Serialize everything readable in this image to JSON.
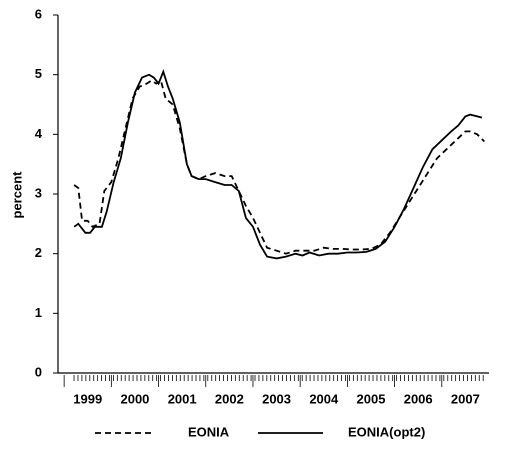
{
  "chart_data": {
    "type": "line",
    "y_label": "percent",
    "xlim": [
      1998.87,
      2008.0
    ],
    "xticks": [
      1999,
      2000,
      2001,
      2002,
      2003,
      2004,
      2005,
      2006,
      2007
    ],
    "ylim": [
      0,
      6
    ],
    "yticks": [
      0,
      1,
      2,
      3,
      4,
      5,
      6
    ],
    "series": [
      {
        "name": "EONIA",
        "color": "#000000",
        "line_style": "dashed",
        "x": [
          1999.21,
          1999.3,
          1999.38,
          1999.5,
          1999.6,
          1999.75,
          1999.85,
          2000.0,
          2000.15,
          2000.3,
          2000.45,
          2000.6,
          2000.75,
          2000.85,
          2000.95,
          2001.05,
          2001.15,
          2001.3,
          2001.45,
          2001.6,
          2001.7,
          2001.85,
          2002.0,
          2002.2,
          2002.4,
          2002.55,
          2002.7,
          2002.85,
          2003.0,
          2003.15,
          2003.3,
          2003.5,
          2003.7,
          2003.9,
          2004.1,
          2004.3,
          2004.5,
          2004.7,
          2004.9,
          2005.1,
          2005.3,
          2005.5,
          2005.7,
          2005.9,
          2006.1,
          2006.3,
          2006.5,
          2006.7,
          2006.9,
          2007.1,
          2007.3,
          2007.5,
          2007.6,
          2007.75,
          2007.9
        ],
        "values": [
          3.15,
          3.1,
          2.55,
          2.55,
          2.45,
          2.5,
          3.05,
          3.2,
          3.6,
          4.1,
          4.6,
          4.8,
          4.85,
          4.9,
          4.85,
          4.9,
          4.6,
          4.5,
          4.1,
          3.5,
          3.3,
          3.25,
          3.3,
          3.35,
          3.3,
          3.3,
          3.05,
          2.8,
          2.6,
          2.35,
          2.1,
          2.05,
          2.0,
          2.05,
          2.05,
          2.05,
          2.1,
          2.08,
          2.08,
          2.07,
          2.07,
          2.08,
          2.15,
          2.35,
          2.6,
          2.85,
          3.1,
          3.35,
          3.6,
          3.75,
          3.9,
          4.05,
          4.05,
          4.0,
          3.88
        ]
      },
      {
        "name": "EONIA(opt2)",
        "color": "#000000",
        "line_style": "solid",
        "x": [
          1999.21,
          1999.3,
          1999.45,
          1999.55,
          1999.65,
          1999.8,
          1999.9,
          2000.05,
          2000.2,
          2000.35,
          2000.5,
          2000.65,
          2000.8,
          2000.9,
          2001.0,
          2001.1,
          2001.2,
          2001.3,
          2001.45,
          2001.6,
          2001.7,
          2001.85,
          2002.0,
          2002.2,
          2002.4,
          2002.55,
          2002.7,
          2002.85,
          2003.0,
          2003.15,
          2003.3,
          2003.5,
          2003.7,
          2003.9,
          2004.05,
          2004.2,
          2004.4,
          2004.6,
          2004.8,
          2005.0,
          2005.2,
          2005.4,
          2005.6,
          2005.8,
          2006.0,
          2006.2,
          2006.4,
          2006.6,
          2006.8,
          2007.0,
          2007.2,
          2007.35,
          2007.5,
          2007.6,
          2007.75,
          2007.85
        ],
        "values": [
          2.45,
          2.5,
          2.35,
          2.35,
          2.45,
          2.45,
          2.7,
          3.2,
          3.6,
          4.2,
          4.7,
          4.95,
          5.0,
          4.95,
          4.85,
          5.05,
          4.8,
          4.6,
          4.2,
          3.5,
          3.3,
          3.25,
          3.25,
          3.2,
          3.15,
          3.15,
          3.05,
          2.6,
          2.45,
          2.15,
          1.95,
          1.92,
          1.95,
          2.0,
          1.97,
          2.02,
          1.97,
          2.0,
          2.0,
          2.02,
          2.02,
          2.03,
          2.08,
          2.2,
          2.45,
          2.75,
          3.1,
          3.45,
          3.75,
          3.9,
          4.05,
          4.15,
          4.3,
          4.33,
          4.3,
          4.28
        ]
      }
    ]
  }
}
